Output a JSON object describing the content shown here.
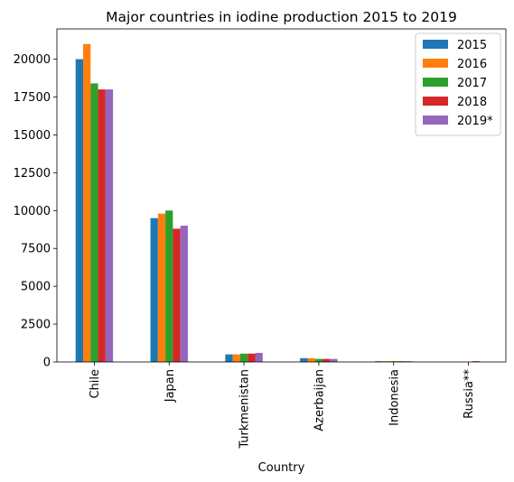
{
  "chart_data": {
    "type": "bar",
    "title": "Major countries in iodine production 2015 to 2019",
    "xlabel": "Country",
    "ylabel": "",
    "categories": [
      "Chile",
      "Japan",
      "Turkmenistan",
      "Azerbaijan",
      "Indonesia",
      "Russia**"
    ],
    "ylim": [
      0,
      22000
    ],
    "yticks": [
      0,
      2500,
      5000,
      7500,
      10000,
      12500,
      15000,
      17500,
      20000
    ],
    "grid": false,
    "legend_position": "top-right",
    "series": [
      {
        "name": "2015",
        "color": "#1f77b4",
        "values": [
          20000,
          9500,
          500,
          250,
          50,
          0
        ]
      },
      {
        "name": "2016",
        "color": "#ff7f0e",
        "values": [
          21000,
          9800,
          500,
          250,
          50,
          0
        ]
      },
      {
        "name": "2017",
        "color": "#2ca02c",
        "values": [
          18400,
          10000,
          550,
          200,
          50,
          0
        ]
      },
      {
        "name": "2018",
        "color": "#d62728",
        "values": [
          18000,
          8800,
          550,
          200,
          50,
          50
        ]
      },
      {
        "name": "2019*",
        "color": "#9467bd",
        "values": [
          18000,
          9000,
          600,
          200,
          50,
          0
        ]
      }
    ]
  }
}
